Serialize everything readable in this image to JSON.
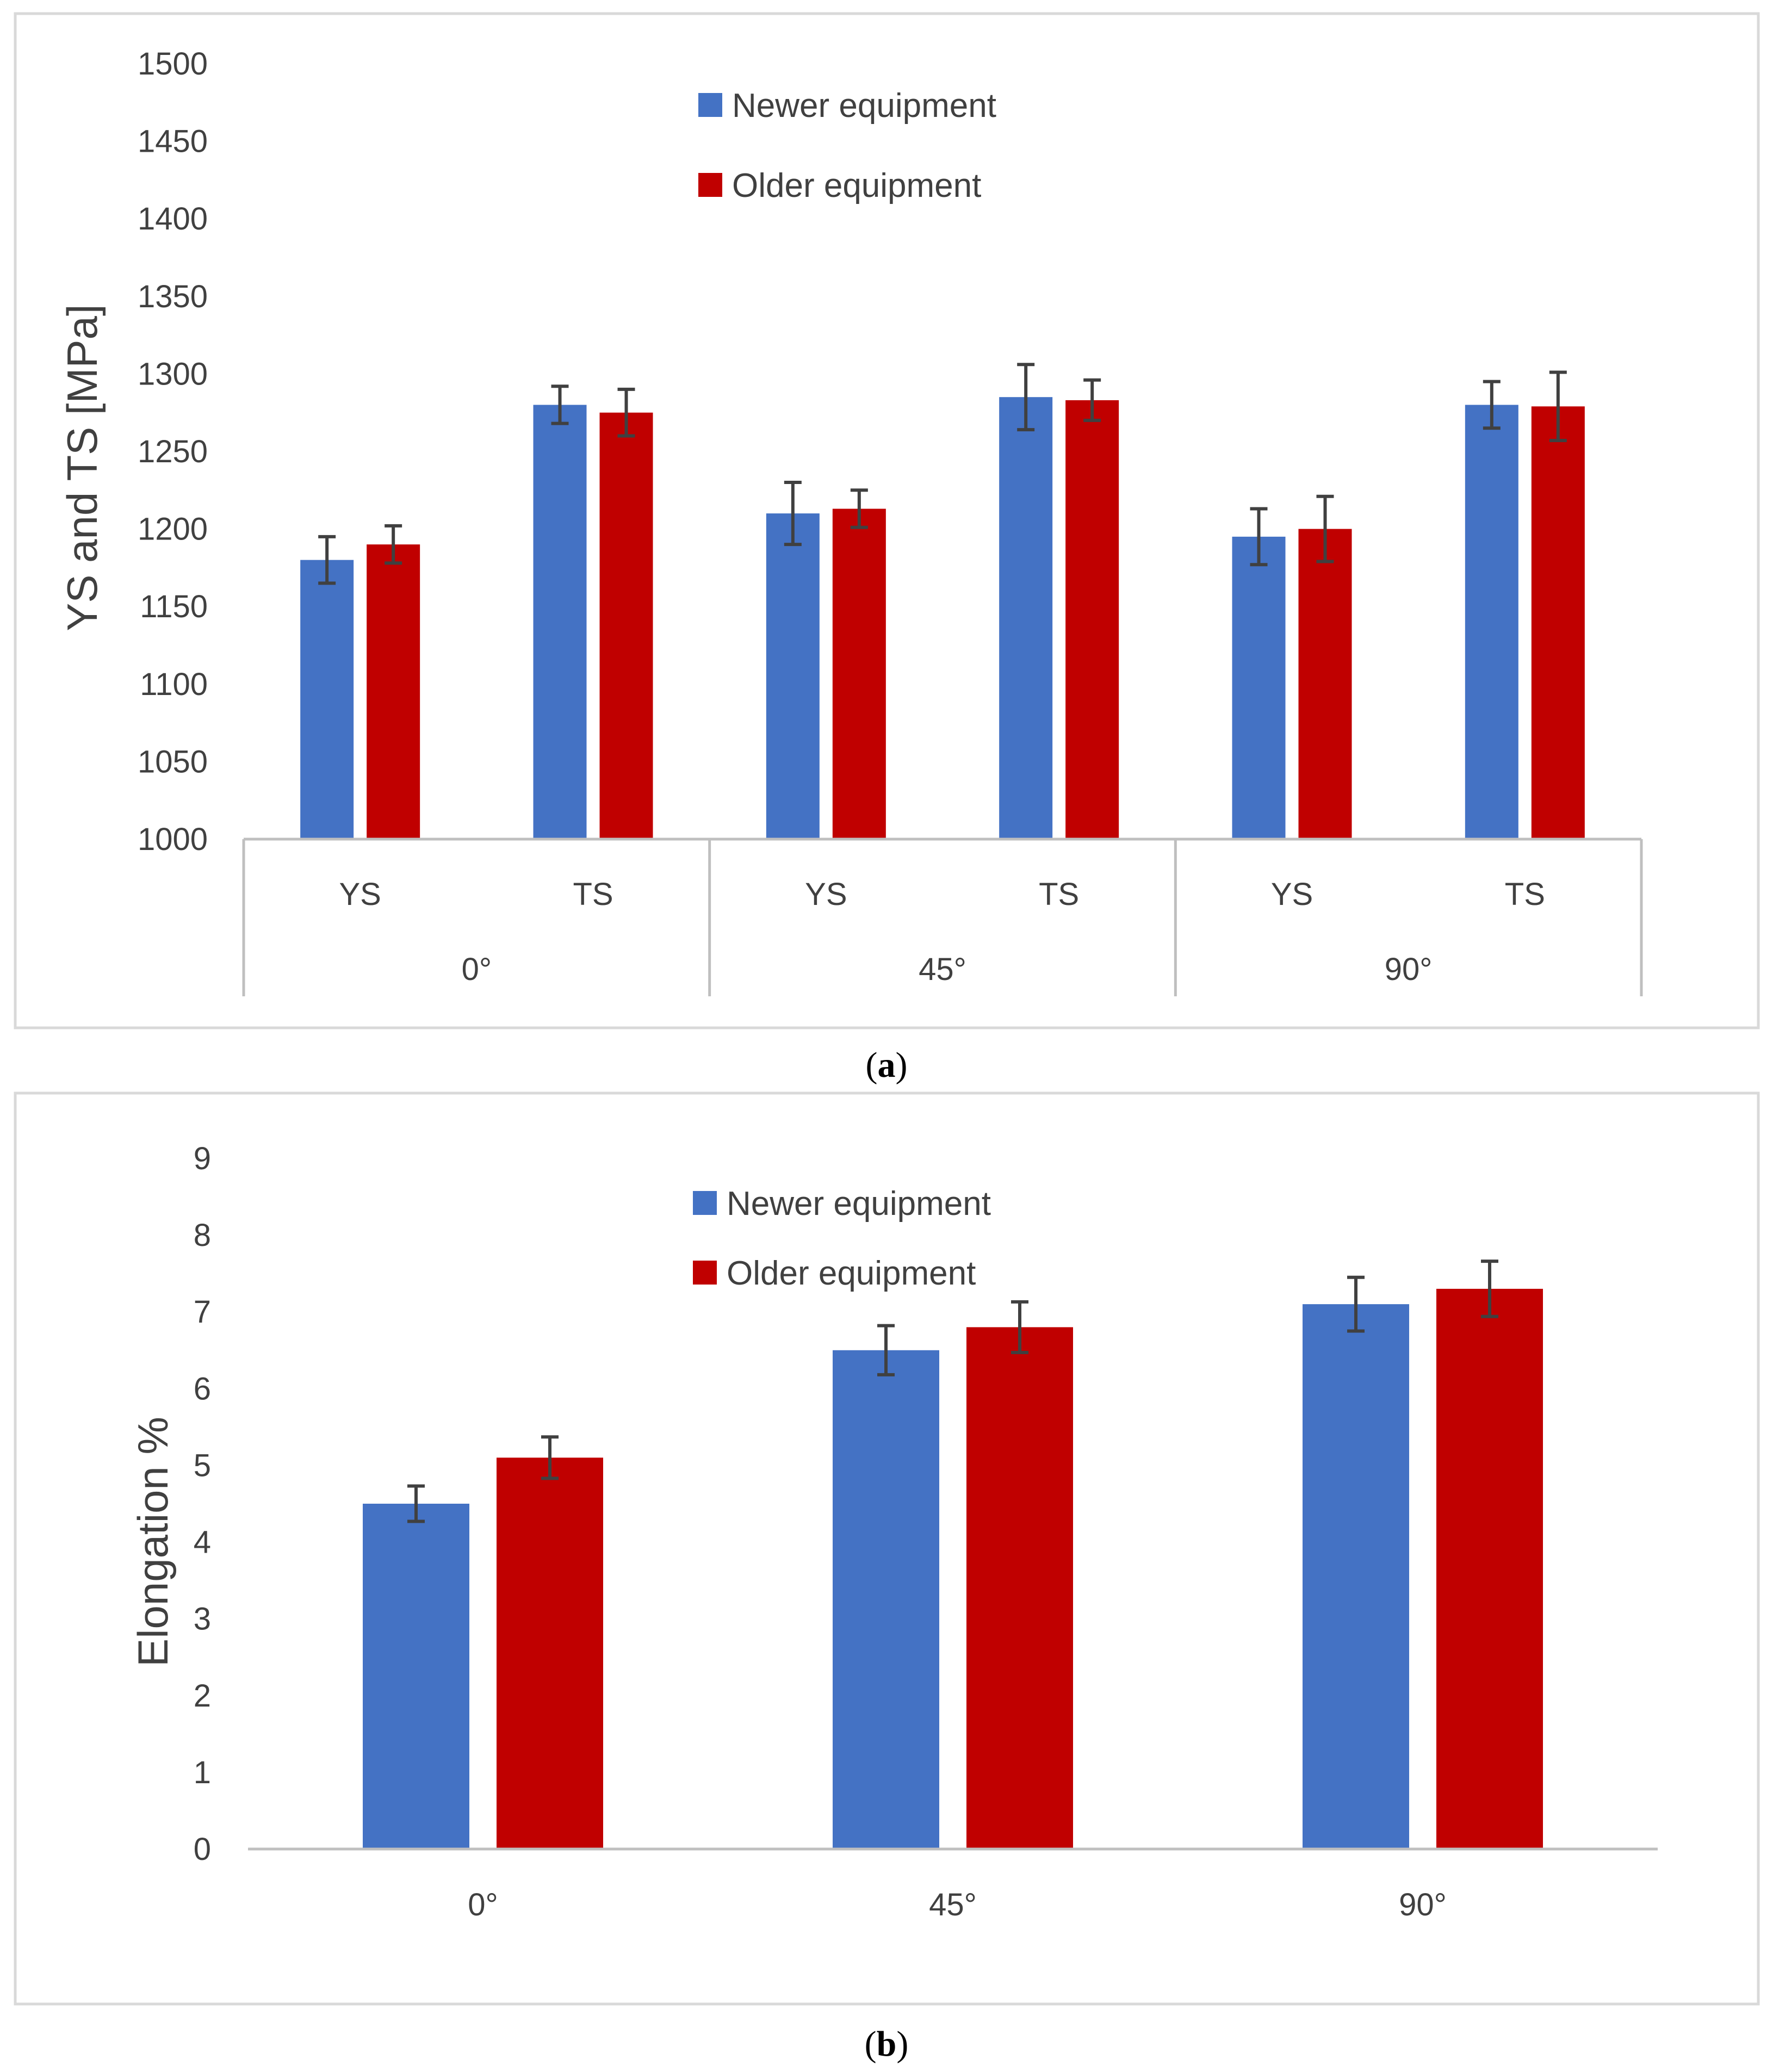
{
  "colors": {
    "newer": "#4472C4",
    "older": "#C00000",
    "errorbar": "#404040",
    "frame": "#D9D9D9",
    "axis": "#BFBFBF"
  },
  "captions": {
    "a": "a",
    "b": "b"
  },
  "chart_data": [
    {
      "type": "bar",
      "ylabel": "YS and TS [MPa]",
      "ylim": [
        1000,
        1500
      ],
      "yticks": [
        1000,
        1050,
        1100,
        1150,
        1200,
        1250,
        1300,
        1350,
        1400,
        1450,
        1500
      ],
      "legend_position": "top-center",
      "categories": [
        "YS",
        "TS",
        "YS",
        "TS",
        "YS",
        "TS"
      ],
      "groups": [
        {
          "label": "0°",
          "span": 2
        },
        {
          "label": "45°",
          "span": 2
        },
        {
          "label": "90°",
          "span": 2
        }
      ],
      "series": [
        {
          "name": "Newer equipment",
          "color_key": "newer",
          "values": [
            1180,
            1280,
            1210,
            1285,
            1195,
            1280
          ],
          "errors": [
            15,
            12,
            20,
            21,
            18,
            15
          ]
        },
        {
          "name": "Older equipment",
          "color_key": "older",
          "values": [
            1190,
            1275,
            1213,
            1283,
            1200,
            1279
          ],
          "errors": [
            12,
            15,
            12,
            13,
            21,
            22
          ]
        }
      ]
    },
    {
      "type": "bar",
      "ylabel": "Elongation %",
      "ylim": [
        0,
        9
      ],
      "yticks": [
        0,
        1,
        2,
        3,
        4,
        5,
        6,
        7,
        8,
        9
      ],
      "legend_position": "top-center",
      "categories": [
        "0°",
        "45°",
        "90°"
      ],
      "series": [
        {
          "name": "Newer equipment",
          "color_key": "newer",
          "values": [
            4.5,
            6.5,
            7.1
          ],
          "errors": [
            0.23,
            0.32,
            0.35
          ]
        },
        {
          "name": "Older equipment",
          "color_key": "older",
          "values": [
            5.1,
            6.8,
            7.3
          ],
          "errors": [
            0.27,
            0.33,
            0.36
          ]
        }
      ]
    }
  ]
}
